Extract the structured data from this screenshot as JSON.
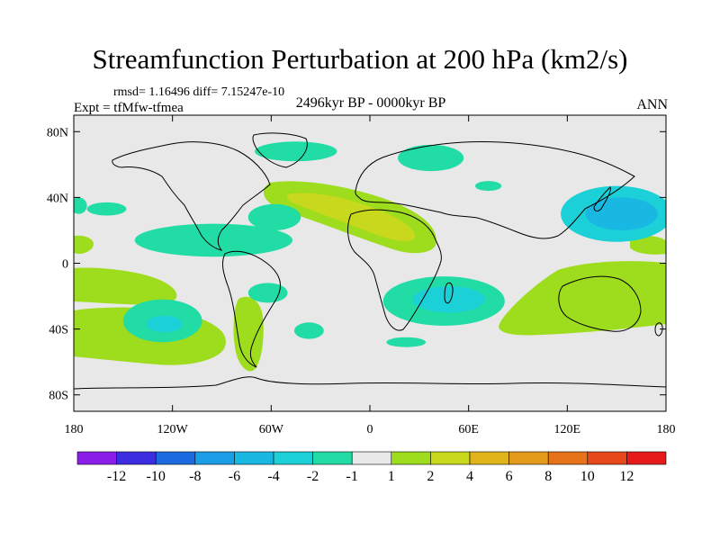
{
  "chart_data": {
    "type": "heatmap",
    "title": "Streamfunction Perturbation at 200 hPa (km2/s)",
    "stats_text": "rmsd= 1.16496 diff= 7.15247e-10",
    "experiment_text": "Expt = tfMfw-tfmea",
    "period_text": "2496kyr BP - 0000kyr BP",
    "season_text": "ANN",
    "x_range": [
      -180,
      180
    ],
    "y_range": [
      -90,
      90
    ],
    "xticks": [
      {
        "value": -180,
        "label": "180"
      },
      {
        "value": -120,
        "label": "120W"
      },
      {
        "value": -60,
        "label": "60W"
      },
      {
        "value": 0,
        "label": "0"
      },
      {
        "value": 60,
        "label": "60E"
      },
      {
        "value": 120,
        "label": "120E"
      },
      {
        "value": 180,
        "label": "180"
      }
    ],
    "yticks": [
      {
        "value": 80,
        "label": "80N"
      },
      {
        "value": 40,
        "label": "40N"
      },
      {
        "value": 0,
        "label": "0"
      },
      {
        "value": -40,
        "label": "40S"
      },
      {
        "value": -80,
        "label": "80S"
      }
    ],
    "colorbar": {
      "colors": [
        "#8b1ee8",
        "#3c2ee0",
        "#1d6be0",
        "#1b9ee6",
        "#19b8e3",
        "#1bd0d6",
        "#22dca6",
        "#e8e8e8",
        "#9edc1e",
        "#c8d81c",
        "#e0b41b",
        "#e49a1a",
        "#e6721a",
        "#e6481a",
        "#e61a1a"
      ],
      "labels": [
        "-12",
        "-10",
        "-8",
        "-6",
        "-4",
        "-2",
        "-1",
        "1",
        "2",
        "4",
        "6",
        "8",
        "10",
        "12"
      ]
    },
    "features": [
      {
        "level": 2,
        "lon": 150,
        "lat": 30,
        "rx": 34,
        "ry": 17
      },
      {
        "level": 3,
        "lon": 153,
        "lat": 30,
        "rx": 22,
        "ry": 10
      },
      {
        "level": 1,
        "lon": 45,
        "lat": -23,
        "rx": 37,
        "ry": 15
      },
      {
        "level": 2,
        "lon": 48,
        "lat": -22,
        "rx": 22,
        "ry": 8
      },
      {
        "level": 1,
        "lon": -126,
        "lat": -35,
        "rx": 24,
        "ry": 13
      },
      {
        "level": 2,
        "lon": -125,
        "lat": -37,
        "rx": 11,
        "ry": 5
      },
      {
        "level": 1,
        "lon": -95,
        "lat": 14,
        "rx": 48,
        "ry": 10
      },
      {
        "level": 1,
        "lon": -58,
        "lat": 28,
        "rx": 16,
        "ry": 8
      },
      {
        "level": 1,
        "lon": -62,
        "lat": -18,
        "rx": 12,
        "ry": 6
      },
      {
        "level": 1,
        "lon": -37,
        "lat": -41,
        "rx": 9,
        "ry": 5
      },
      {
        "level": 1,
        "lon": -45,
        "lat": 68,
        "rx": 25,
        "ry": 6
      },
      {
        "level": 1,
        "lon": 37,
        "lat": 64,
        "rx": 20,
        "ry": 8
      },
      {
        "level": 1,
        "lon": 72,
        "lat": 47,
        "rx": 8,
        "ry": 3
      },
      {
        "level": 1,
        "lon": 22,
        "lat": -48,
        "rx": 12,
        "ry": 3
      },
      {
        "level": 1,
        "lon": -160,
        "lat": 33,
        "rx": 12,
        "ry": 4
      },
      {
        "level": 1,
        "lon": -177,
        "lat": 35,
        "rx": 5,
        "ry": 5
      }
    ]
  }
}
